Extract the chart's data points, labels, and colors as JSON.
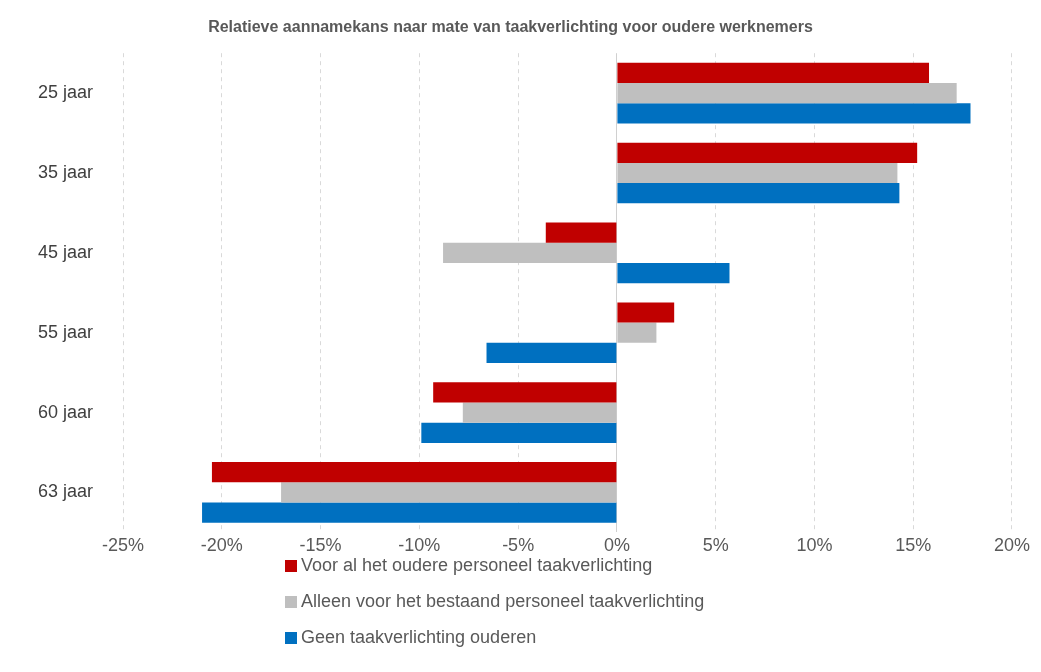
{
  "chart_data": {
    "type": "bar",
    "orientation": "horizontal",
    "title": "Relatieve aannamekans naar mate van taakverlichting voor oudere werknemers",
    "categories": [
      "25 jaar",
      "35 jaar",
      "45 jaar",
      "55 jaar",
      "60 jaar",
      "63 jaar"
    ],
    "series": [
      {
        "name": "Voor al het oudere personeel taakverlichting",
        "color": "#c00000",
        "values": [
          15.8,
          15.2,
          -3.6,
          2.9,
          -9.3,
          -20.5
        ]
      },
      {
        "name": "Alleen voor het bestaand personeel taakverlichting",
        "color": "#bfbfbf",
        "values": [
          17.2,
          14.2,
          -8.8,
          2.0,
          -7.8,
          -17.0
        ]
      },
      {
        "name": "Geen taakverlichting ouderen",
        "color": "#0070c0",
        "values": [
          17.9,
          14.3,
          5.7,
          -6.6,
          -9.9,
          -21.0
        ]
      }
    ],
    "xlim": [
      -25,
      20
    ],
    "xticks": [
      {
        "value": -25,
        "label": "-25%"
      },
      {
        "value": -20,
        "label": "-20%"
      },
      {
        "value": -15,
        "label": "-15%"
      },
      {
        "value": -10,
        "label": "-10%"
      },
      {
        "value": -5,
        "label": "-5%"
      },
      {
        "value": 0,
        "label": "0%"
      },
      {
        "value": 5,
        "label": "5%"
      },
      {
        "value": 10,
        "label": "10%"
      },
      {
        "value": 15,
        "label": "15%"
      },
      {
        "value": 20,
        "label": "20%"
      }
    ],
    "grid": "x",
    "legend": "bottom"
  }
}
